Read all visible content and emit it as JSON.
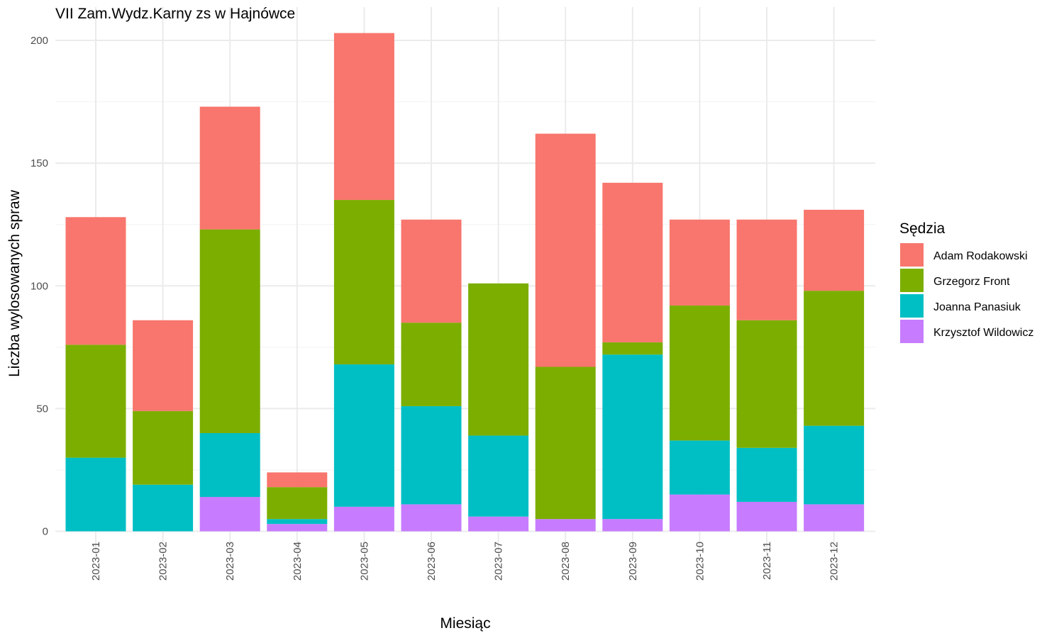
{
  "chart_data": {
    "type": "bar",
    "stacked": true,
    "title": "VII Zam.Wydz.Karny zs w Hajnówce",
    "xlabel": "Miesiąc",
    "ylabel": "Liczba wylosowanych spraw",
    "ylim": [
      0,
      210
    ],
    "y_ticks": [
      0,
      50,
      100,
      150,
      200
    ],
    "grid": true,
    "legend": {
      "title": "Sędzia",
      "position": "right"
    },
    "categories": [
      "2023-01",
      "2023-02",
      "2023-03",
      "2023-04",
      "2023-05",
      "2023-06",
      "2023-07",
      "2023-08",
      "2023-09",
      "2023-10",
      "2023-11",
      "2023-12"
    ],
    "series": [
      {
        "name": "Krzysztof Wildowicz",
        "color": "#C77CFF",
        "values": [
          0,
          0,
          14,
          3,
          10,
          11,
          6,
          5,
          5,
          15,
          12,
          11
        ]
      },
      {
        "name": "Joanna Panasiuk",
        "color": "#00BFC4",
        "values": [
          30,
          19,
          26,
          2,
          58,
          40,
          33,
          0,
          67,
          22,
          22,
          32
        ]
      },
      {
        "name": "Grzegorz Front",
        "color": "#7CAE00",
        "values": [
          46,
          30,
          83,
          13,
          67,
          34,
          62,
          62,
          5,
          55,
          52,
          55
        ]
      },
      {
        "name": "Adam Rodakowski",
        "color": "#F8766D",
        "values": [
          52,
          37,
          50,
          6,
          68,
          42,
          0,
          95,
          65,
          35,
          41,
          33
        ]
      }
    ]
  }
}
